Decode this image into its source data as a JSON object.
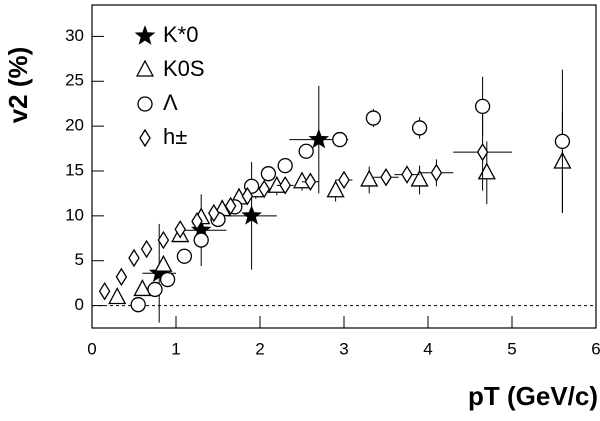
{
  "chart_data": {
    "type": "scatter",
    "x_label": "pT (GeV/c)",
    "y_label": "v2 (%)",
    "xlim": [
      0,
      6
    ],
    "ylim": [
      -2.5,
      33.5
    ],
    "xticks": [
      0,
      1,
      2,
      3,
      4,
      5,
      6
    ],
    "yticks": [
      0,
      5,
      10,
      15,
      20,
      25,
      30
    ],
    "legend": "upper left",
    "series": [
      {
        "name": "K*0",
        "marker": "star",
        "color": "#000000",
        "x": [
          0.8,
          1.3,
          1.9,
          2.7
        ],
        "values": [
          3.6,
          8.4,
          10,
          18.5
        ],
        "y_errors": [
          5.5,
          4,
          6,
          6
        ],
        "x_errors": [
          0.2,
          0.3,
          0.3,
          0.35
        ]
      },
      {
        "name": "K0S",
        "marker": "triangle",
        "color": "#000000",
        "x": [
          0.3,
          0.6,
          0.85,
          1.05,
          1.3,
          1.55,
          1.75,
          1.95,
          2.2,
          2.5,
          2.9,
          3.3,
          3.9,
          4.7,
          5.6
        ],
        "values": [
          0.9,
          1.8,
          4.5,
          7.8,
          9.8,
          10.7,
          12,
          12.8,
          13.3,
          13.8,
          12.8,
          14,
          14,
          14.8,
          16
        ],
        "y_errors": [
          0.6,
          0.6,
          0.7,
          0.7,
          0.8,
          0.8,
          0.9,
          0.9,
          1,
          1,
          1.2,
          1.5,
          1.6,
          3.5,
          5.6
        ]
      },
      {
        "name": "Λ",
        "marker": "circle",
        "color": "#000000",
        "x": [
          0.55,
          0.75,
          0.9,
          1.1,
          1.3,
          1.5,
          1.7,
          1.9,
          2.1,
          2.3,
          2.55,
          2.95,
          3.35,
          3.9,
          4.65,
          5.6
        ],
        "values": [
          0.1,
          1.8,
          2.9,
          5.5,
          7.3,
          9.6,
          11,
          13.3,
          14.7,
          15.6,
          17.2,
          18.5,
          20.9,
          19.8,
          22.2,
          18.3
        ],
        "y_errors": [
          0.5,
          0.5,
          0.5,
          0.5,
          0.5,
          0.5,
          0.5,
          0.6,
          0.6,
          0.6,
          0.7,
          0.8,
          1,
          1.2,
          3.3,
          8
        ]
      },
      {
        "name": "h±",
        "marker": "diamond",
        "color": "#000000",
        "x": [
          0.15,
          0.35,
          0.5,
          0.65,
          0.85,
          1.05,
          1.25,
          1.45,
          1.65,
          1.85,
          2.05,
          2.3,
          2.6,
          3.0,
          3.5,
          3.75,
          4.1,
          4.65
        ],
        "values": [
          1.6,
          3.2,
          5.3,
          6.3,
          7.3,
          8.5,
          9.4,
          10.3,
          11.1,
          12.2,
          13,
          13.4,
          13.8,
          14,
          14.3,
          14.6,
          14.8,
          17.1
        ],
        "y_errors": [
          0.3,
          0.3,
          0.3,
          0.3,
          0.3,
          0.3,
          0.3,
          0.3,
          0.3,
          0.3,
          0.4,
          0.4,
          0.5,
          0.6,
          0.8,
          1,
          1.5,
          4.3
        ],
        "x_errors": [
          0.05,
          0.05,
          0.05,
          0.05,
          0.05,
          0.05,
          0.05,
          0.05,
          0.05,
          0.05,
          0.05,
          0.1,
          0.1,
          0.1,
          0.15,
          0.15,
          0.2,
          0.35
        ]
      }
    ]
  }
}
